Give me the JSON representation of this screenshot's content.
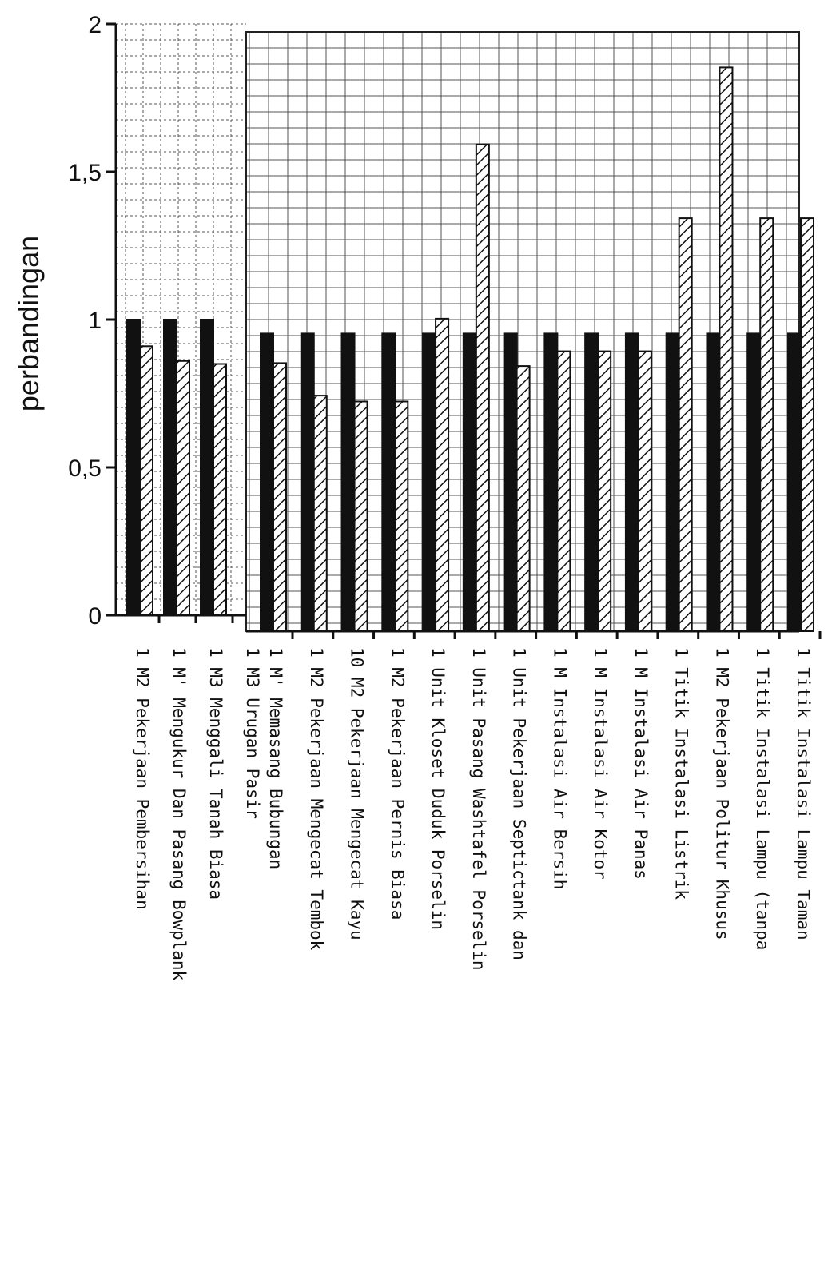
{
  "chart_data": {
    "type": "bar",
    "title": "",
    "xlabel": "",
    "ylabel": "perbandingan",
    "ylim": [
      0,
      2
    ],
    "yticks": [
      "0",
      "0,5",
      "1",
      "1,5",
      "2"
    ],
    "grid": true,
    "legend": "none",
    "colors": {
      "solid": "#111111",
      "hatched": "#ffffff",
      "grid": "#555555"
    },
    "categories": [
      "1 M2 Pekerjaan Pembersihan",
      "1 M' Mengukur Dan Pasang Bowplank",
      "1 M3 Menggali Tanah Biasa",
      "1 M3 Urugan Pasir",
      "1 M' Memasang Bubungan",
      "1 M2 Pekerjaan Mengecat Tembok",
      "10 M2 Pekerjaan Mengecat Kayu",
      "1 M2 Pekerjaan Pernis Biasa",
      "1 Unit Kloset Duduk Porselin",
      "1 Unit Pasang Washtafel Porselin",
      "1 Unit Pekerjaan Septictank dan",
      "1 M Instalasi Air Bersih",
      "1 M Instalasi Air Kotor",
      "1 M Instalasi Air Panas",
      "1 Titik Instalasi Listrik",
      "1 M2 Pekerjaan Politur Khusus",
      "1 Titik Instalasi Lampu (tanpa",
      "1 Titik Instalasi Lampu Taman"
    ],
    "series": [
      {
        "values": [
          1.0,
          1.0,
          1.0,
          null,
          0.98,
          0.98,
          0.98,
          0.98,
          0.98,
          0.98,
          0.98,
          0.98,
          0.98,
          0.98,
          0.98,
          0.98,
          0.98,
          0.98
        ]
      },
      {
        "values": [
          0.91,
          0.86,
          0.85,
          null,
          0.88,
          0.77,
          0.75,
          0.75,
          1.03,
          1.62,
          0.87,
          0.92,
          0.92,
          0.92,
          1.37,
          1.88,
          1.37,
          1.37
        ]
      }
    ]
  }
}
